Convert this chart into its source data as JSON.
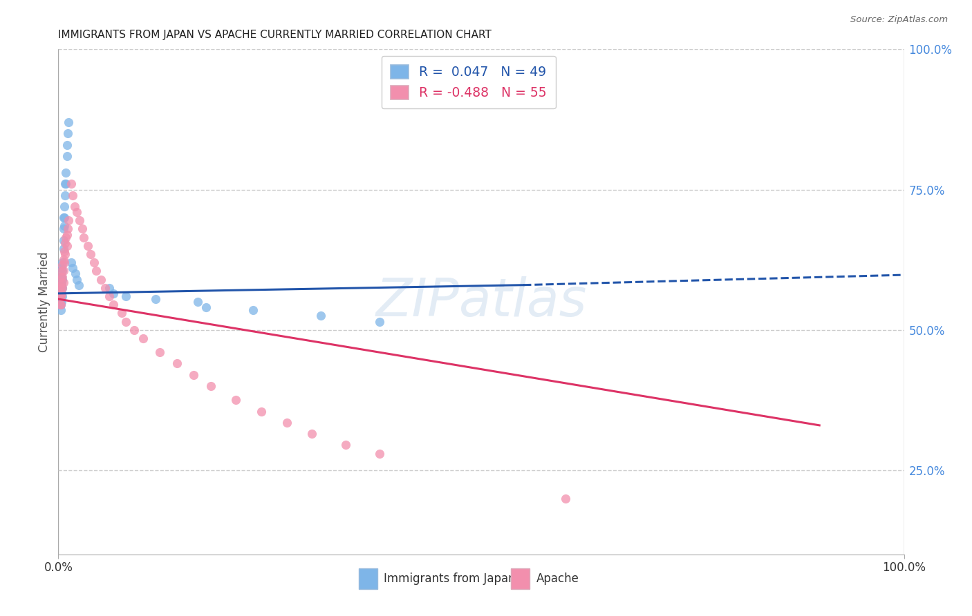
{
  "title": "IMMIGRANTS FROM JAPAN VS APACHE CURRENTLY MARRIED CORRELATION CHART",
  "source": "Source: ZipAtlas.com",
  "ylabel": "Currently Married",
  "right_yticks": [
    "100.0%",
    "75.0%",
    "50.0%",
    "25.0%"
  ],
  "right_ytick_vals": [
    1.0,
    0.75,
    0.5,
    0.25
  ],
  "legend_blue_label": "R =  0.047   N = 49",
  "legend_pink_label": "R = -0.488   N = 55",
  "blue_color": "#7EB5E8",
  "pink_color": "#F28FAD",
  "blue_line_color": "#2255AA",
  "pink_line_color": "#DD3366",
  "blue_x": [
    0.002,
    0.002,
    0.002,
    0.002,
    0.003,
    0.003,
    0.003,
    0.003,
    0.003,
    0.003,
    0.004,
    0.004,
    0.004,
    0.004,
    0.004,
    0.005,
    0.005,
    0.005,
    0.005,
    0.005,
    0.006,
    0.006,
    0.006,
    0.006,
    0.007,
    0.007,
    0.007,
    0.008,
    0.008,
    0.009,
    0.009,
    0.01,
    0.01,
    0.011,
    0.012,
    0.015,
    0.017,
    0.02,
    0.022,
    0.024,
    0.06,
    0.065,
    0.08,
    0.115,
    0.165,
    0.175,
    0.23,
    0.31,
    0.38
  ],
  "blue_y": [
    0.595,
    0.575,
    0.56,
    0.545,
    0.59,
    0.575,
    0.565,
    0.555,
    0.545,
    0.535,
    0.61,
    0.595,
    0.58,
    0.565,
    0.55,
    0.62,
    0.605,
    0.59,
    0.575,
    0.56,
    0.7,
    0.68,
    0.66,
    0.645,
    0.72,
    0.7,
    0.685,
    0.76,
    0.74,
    0.78,
    0.76,
    0.83,
    0.81,
    0.85,
    0.87,
    0.62,
    0.61,
    0.6,
    0.59,
    0.58,
    0.575,
    0.565,
    0.56,
    0.555,
    0.55,
    0.54,
    0.535,
    0.525,
    0.515
  ],
  "pink_x": [
    0.002,
    0.002,
    0.002,
    0.003,
    0.003,
    0.003,
    0.003,
    0.004,
    0.004,
    0.004,
    0.005,
    0.005,
    0.005,
    0.006,
    0.006,
    0.006,
    0.007,
    0.007,
    0.008,
    0.008,
    0.009,
    0.01,
    0.01,
    0.011,
    0.012,
    0.015,
    0.017,
    0.019,
    0.022,
    0.025,
    0.028,
    0.03,
    0.035,
    0.038,
    0.042,
    0.045,
    0.05,
    0.055,
    0.06,
    0.065,
    0.075,
    0.08,
    0.09,
    0.1,
    0.12,
    0.14,
    0.16,
    0.18,
    0.21,
    0.24,
    0.27,
    0.3,
    0.34,
    0.38,
    0.6
  ],
  "pink_y": [
    0.58,
    0.56,
    0.545,
    0.595,
    0.575,
    0.56,
    0.545,
    0.605,
    0.585,
    0.565,
    0.615,
    0.595,
    0.575,
    0.625,
    0.605,
    0.585,
    0.64,
    0.62,
    0.655,
    0.635,
    0.665,
    0.67,
    0.65,
    0.68,
    0.695,
    0.76,
    0.74,
    0.72,
    0.71,
    0.695,
    0.68,
    0.665,
    0.65,
    0.635,
    0.62,
    0.605,
    0.59,
    0.575,
    0.56,
    0.545,
    0.53,
    0.515,
    0.5,
    0.485,
    0.46,
    0.44,
    0.42,
    0.4,
    0.375,
    0.355,
    0.335,
    0.315,
    0.295,
    0.28,
    0.2
  ]
}
